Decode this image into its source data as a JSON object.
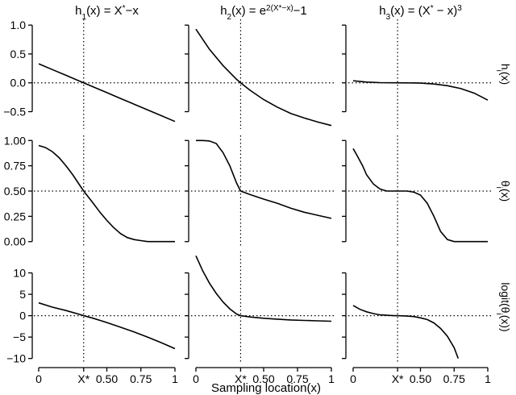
{
  "chart_data": {
    "type": "line",
    "xlabel": "Sampling location(x)",
    "x_tick_labels": [
      "0",
      "X*",
      "0.50",
      "0.75",
      "1"
    ],
    "x_tick_values": [
      0,
      0.33,
      0.5,
      0.75,
      1
    ],
    "x_star": 0.33,
    "columns": [
      {
        "title": "h",
        "title_sub": "1",
        "title_parts": [
          {
            "t": "h"
          },
          {
            "t": "1",
            "s": "sub"
          },
          {
            "t": "(x) = X"
          },
          {
            "t": "*",
            "s": "sup"
          },
          {
            "t": "−x"
          }
        ]
      },
      {
        "title": "h",
        "title_sub": "2",
        "title_parts": [
          {
            "t": "h"
          },
          {
            "t": "2",
            "s": "sub"
          },
          {
            "t": "(x) = e"
          },
          {
            "t": "2(X*−x)",
            "s": "sup"
          },
          {
            "t": "−1"
          }
        ]
      },
      {
        "title": "h",
        "title_sub": "3",
        "title_parts": [
          {
            "t": "h"
          },
          {
            "t": "3",
            "s": "sub"
          },
          {
            "t": "(x) = (X"
          },
          {
            "t": "*",
            "s": "sup"
          },
          {
            "t": " − x)"
          },
          {
            "t": "3",
            "s": "sup"
          }
        ]
      }
    ],
    "rows": [
      {
        "label_parts": [
          {
            "t": "h"
          },
          {
            "t": "i",
            "s": "sub"
          },
          {
            "t": "(x)"
          }
        ],
        "ylim": [
          -0.8,
          1.1
        ],
        "y_ticks": [
          -0.5,
          0.0,
          0.5,
          1.0
        ],
        "y_tick_labels": [
          "−0.5",
          "0.0",
          "0.5",
          "1.0"
        ],
        "ref_y": 0,
        "series": [
          {
            "x": [
              0,
              0.1,
              0.2,
              0.3,
              0.4,
              0.5,
              0.6,
              0.7,
              0.8,
              0.9,
              1.0
            ],
            "y": [
              0.33,
              0.23,
              0.13,
              0.03,
              -0.07,
              -0.17,
              -0.27,
              -0.37,
              -0.47,
              -0.57,
              -0.67
            ]
          },
          {
            "x": [
              0,
              0.1,
              0.2,
              0.3,
              0.33,
              0.4,
              0.5,
              0.6,
              0.7,
              0.8,
              0.9,
              1.0
            ],
            "y": [
              0.93,
              0.58,
              0.3,
              0.06,
              0.0,
              -0.13,
              -0.29,
              -0.42,
              -0.53,
              -0.61,
              -0.68,
              -0.74
            ]
          },
          {
            "x": [
              0,
              0.1,
              0.2,
              0.3,
              0.4,
              0.5,
              0.6,
              0.7,
              0.8,
              0.9,
              1.0
            ],
            "y": [
              0.036,
              0.013,
              0.003,
              0.0,
              -0.0005,
              -0.005,
              -0.02,
              -0.05,
              -0.1,
              -0.18,
              -0.3
            ]
          }
        ]
      },
      {
        "label_parts": [
          {
            "t": "θ"
          },
          {
            "t": "i",
            "s": "sub"
          },
          {
            "t": "(x)"
          }
        ],
        "ylim": [
          -0.05,
          1.05
        ],
        "y_ticks": [
          0.0,
          0.25,
          0.5,
          0.75,
          1.0
        ],
        "y_tick_labels": [
          "0.00",
          "0.25",
          "0.50",
          "0.75",
          "1.00"
        ],
        "ref_y": 0.5,
        "series": [
          {
            "x": [
              0,
              0.05,
              0.1,
              0.15,
              0.2,
              0.25,
              0.3,
              0.33,
              0.4,
              0.45,
              0.5,
              0.55,
              0.6,
              0.65,
              0.7,
              0.75,
              0.8,
              0.9,
              1.0
            ],
            "y": [
              0.95,
              0.93,
              0.89,
              0.83,
              0.75,
              0.66,
              0.56,
              0.5,
              0.38,
              0.29,
              0.21,
              0.14,
              0.08,
              0.04,
              0.02,
              0.01,
              0.0,
              0.0,
              0.0
            ]
          },
          {
            "x": [
              0,
              0.05,
              0.1,
              0.15,
              0.2,
              0.25,
              0.3,
              0.33,
              0.4,
              0.5,
              0.6,
              0.7,
              0.8,
              0.9,
              1.0
            ],
            "y": [
              1.0,
              1.0,
              0.995,
              0.97,
              0.88,
              0.75,
              0.58,
              0.5,
              0.465,
              0.42,
              0.38,
              0.33,
              0.29,
              0.26,
              0.23
            ]
          },
          {
            "x": [
              0,
              0.03,
              0.07,
              0.1,
              0.15,
              0.2,
              0.25,
              0.3,
              0.35,
              0.4,
              0.45,
              0.5,
              0.55,
              0.6,
              0.65,
              0.7,
              0.75,
              0.8,
              0.9,
              1.0
            ],
            "y": [
              0.92,
              0.85,
              0.75,
              0.66,
              0.57,
              0.52,
              0.5,
              0.5,
              0.5,
              0.5,
              0.49,
              0.46,
              0.38,
              0.25,
              0.1,
              0.02,
              0.0,
              0.0,
              0.0,
              0.0
            ]
          }
        ]
      },
      {
        "label_parts": [
          {
            "t": "logit(θ"
          },
          {
            "t": "i",
            "s": "sub"
          },
          {
            "t": "(x))"
          }
        ],
        "ylim": [
          -11,
          15
        ],
        "y_ticks": [
          -10,
          -5,
          0,
          5,
          10
        ],
        "y_tick_labels": [
          "−10",
          "−5",
          "0",
          "5",
          "10"
        ],
        "ref_y": 0,
        "series": [
          {
            "x": [
              0,
              0.1,
              0.2,
              0.3,
              0.33,
              0.4,
              0.5,
              0.6,
              0.7,
              0.8,
              0.9,
              1.0
            ],
            "y": [
              3.0,
              2.0,
              1.2,
              0.3,
              0.0,
              -0.6,
              -1.6,
              -2.7,
              -3.8,
              -5.0,
              -6.3,
              -7.7
            ]
          },
          {
            "x": [
              0,
              0.05,
              0.1,
              0.15,
              0.2,
              0.25,
              0.3,
              0.33,
              0.4,
              0.5,
              0.6,
              0.7,
              0.8,
              0.9,
              1.0
            ],
            "y": [
              14.0,
              10.5,
              7.6,
              5.2,
              3.2,
              1.6,
              0.4,
              0.0,
              -0.3,
              -0.6,
              -0.8,
              -1.0,
              -1.1,
              -1.2,
              -1.3
            ]
          },
          {
            "x": [
              0,
              0.05,
              0.1,
              0.15,
              0.2,
              0.25,
              0.3,
              0.33,
              0.4,
              0.45,
              0.5,
              0.55,
              0.6,
              0.65,
              0.7,
              0.75,
              0.78
            ],
            "y": [
              2.4,
              1.5,
              0.9,
              0.5,
              0.2,
              0.1,
              0.0,
              0.0,
              -0.1,
              -0.2,
              -0.5,
              -0.9,
              -1.7,
              -3.0,
              -4.8,
              -7.5,
              -10.0
            ]
          }
        ]
      }
    ]
  }
}
